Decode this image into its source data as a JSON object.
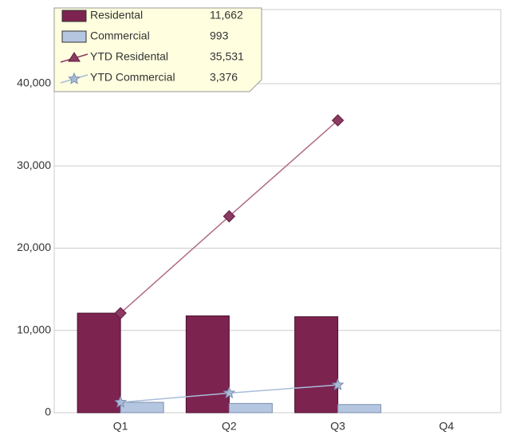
{
  "chart_data": {
    "type": "bar_line",
    "categories": [
      "Q1",
      "Q2",
      "Q3",
      "Q4"
    ],
    "series": [
      {
        "name": "Residental",
        "kind": "bar",
        "color": "#7d2350",
        "values": [
          12100,
          11769,
          11662,
          null
        ],
        "legend_value": "11,662"
      },
      {
        "name": "Commercial",
        "kind": "bar",
        "color": "#b4c6e0",
        "values": [
          1260,
          1123,
          993,
          null
        ],
        "legend_value": "993"
      },
      {
        "name": "YTD Residental",
        "kind": "line",
        "color": "#8b3a62",
        "values": [
          12100,
          23869,
          35531,
          null
        ],
        "legend_value": "35,531"
      },
      {
        "name": "YTD Commercial",
        "kind": "line",
        "color": "#a8bcd8",
        "values": [
          1260,
          2383,
          3376,
          null
        ],
        "legend_value": "3,376"
      }
    ],
    "ylim": [
      0,
      49000
    ],
    "yticks": [
      0,
      {
        "value": 10000,
        "label": "10,000"
      },
      {
        "value": 20000,
        "label": "20,000"
      },
      {
        "value": 30000,
        "label": "30,000"
      },
      {
        "value": 40000,
        "label": "40,000"
      }
    ],
    "grid": true,
    "legend": "top-left"
  }
}
